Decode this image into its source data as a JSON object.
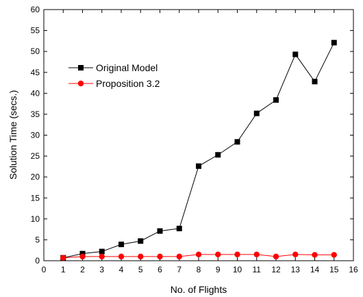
{
  "chart_data": {
    "type": "line",
    "title": "",
    "xlabel": "No. of Flights",
    "ylabel": "Solution Time (secs.)",
    "xlim": [
      0,
      16
    ],
    "ylim": [
      0,
      60
    ],
    "xticks": [
      0,
      1,
      2,
      3,
      4,
      5,
      6,
      7,
      8,
      9,
      10,
      11,
      12,
      13,
      14,
      15,
      16
    ],
    "yticks": [
      0,
      5,
      10,
      15,
      20,
      25,
      30,
      35,
      40,
      45,
      50,
      55,
      60
    ],
    "grid": false,
    "legend_position": "upper-left",
    "x": [
      1,
      2,
      3,
      4,
      5,
      6,
      7,
      8,
      9,
      10,
      11,
      12,
      13,
      14,
      15
    ],
    "series": [
      {
        "name": "Original Model",
        "marker": "square",
        "color": "#000000",
        "values": [
          0.7,
          1.7,
          2.2,
          3.9,
          4.7,
          7.1,
          7.7,
          22.6,
          25.3,
          28.4,
          35.2,
          38.4,
          49.3,
          42.8,
          52.1
        ]
      },
      {
        "name": "Proposition 3.2",
        "marker": "circle",
        "color": "#ff0000",
        "values": [
          0.7,
          1.0,
          1.0,
          1.0,
          1.0,
          1.0,
          1.0,
          1.5,
          1.5,
          1.5,
          1.5,
          1.0,
          1.5,
          1.4,
          1.4
        ]
      }
    ]
  }
}
